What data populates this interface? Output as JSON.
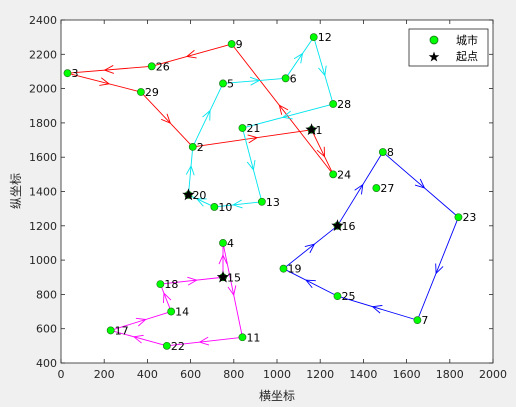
{
  "chart_data": {
    "type": "scatter",
    "xlabel": "横坐标",
    "ylabel": "纵坐标",
    "xlim": [
      0,
      2000
    ],
    "ylim": [
      400,
      2400
    ],
    "xticks": [
      "0",
      "200",
      "400",
      "600",
      "800",
      "1000",
      "1200",
      "1400",
      "1600",
      "1800",
      "2000"
    ],
    "yticks": [
      "400",
      "600",
      "800",
      "1000",
      "1200",
      "1400",
      "1600",
      "1800",
      "2000",
      "2200",
      "2400"
    ],
    "grid": false,
    "legend": {
      "placement": "top-right",
      "entries": [
        "城市",
        "起点"
      ]
    },
    "colors": {
      "city": "#00ff00",
      "city_edge": "#1a6b1a",
      "start": "#000000",
      "route_red": "#ff0000",
      "route_cyan": "#00e5ee",
      "route_blue": "#0000ff",
      "route_magenta": "#ff00ff"
    },
    "points": [
      {
        "id": "1",
        "x": 1160,
        "y": 1760
      },
      {
        "id": "2",
        "x": 610,
        "y": 1660
      },
      {
        "id": "3",
        "x": 30,
        "y": 2090
      },
      {
        "id": "4",
        "x": 750,
        "y": 1100
      },
      {
        "id": "5",
        "x": 750,
        "y": 2030
      },
      {
        "id": "6",
        "x": 1040,
        "y": 2060
      },
      {
        "id": "7",
        "x": 1650,
        "y": 650
      },
      {
        "id": "8",
        "x": 1490,
        "y": 1630
      },
      {
        "id": "9",
        "x": 790,
        "y": 2260
      },
      {
        "id": "10",
        "x": 710,
        "y": 1310
      },
      {
        "id": "11",
        "x": 840,
        "y": 550
      },
      {
        "id": "12",
        "x": 1170,
        "y": 2300
      },
      {
        "id": "13",
        "x": 930,
        "y": 1340
      },
      {
        "id": "14",
        "x": 510,
        "y": 700
      },
      {
        "id": "15",
        "x": 750,
        "y": 900
      },
      {
        "id": "16",
        "x": 1280,
        "y": 1200
      },
      {
        "id": "17",
        "x": 230,
        "y": 590
      },
      {
        "id": "18",
        "x": 460,
        "y": 860
      },
      {
        "id": "19",
        "x": 1030,
        "y": 950
      },
      {
        "id": "20",
        "x": 590,
        "y": 1380
      },
      {
        "id": "21",
        "x": 840,
        "y": 1770
      },
      {
        "id": "22",
        "x": 490,
        "y": 500
      },
      {
        "id": "23",
        "x": 1840,
        "y": 1250
      },
      {
        "id": "24",
        "x": 1260,
        "y": 1500
      },
      {
        "id": "25",
        "x": 1280,
        "y": 790
      },
      {
        "id": "26",
        "x": 420,
        "y": 2130
      },
      {
        "id": "27",
        "x": 1460,
        "y": 1420
      },
      {
        "id": "28",
        "x": 1260,
        "y": 1910
      },
      {
        "id": "29",
        "x": 370,
        "y": 1980
      }
    ],
    "start_points": [
      "1",
      "20",
      "16",
      "15"
    ],
    "routes": [
      {
        "color": "route_red",
        "path": [
          "1",
          "24",
          "9",
          "26",
          "3",
          "29",
          "2",
          "1"
        ]
      },
      {
        "color": "route_cyan",
        "path": [
          "20",
          "2",
          "5",
          "6",
          "12",
          "28",
          "21",
          "13",
          "10",
          "20"
        ]
      },
      {
        "color": "route_blue",
        "path": [
          "16",
          "8",
          "23",
          "7",
          "25",
          "19",
          "16"
        ]
      },
      {
        "color": "route_magenta",
        "path": [
          "15",
          "4",
          "11",
          "22",
          "17",
          "14",
          "18",
          "15"
        ]
      }
    ],
    "label_style": {
      "route_red": "red",
      "route_cyan": "cyan",
      "route_blue": "blue",
      "route_magenta": "magenta"
    }
  }
}
